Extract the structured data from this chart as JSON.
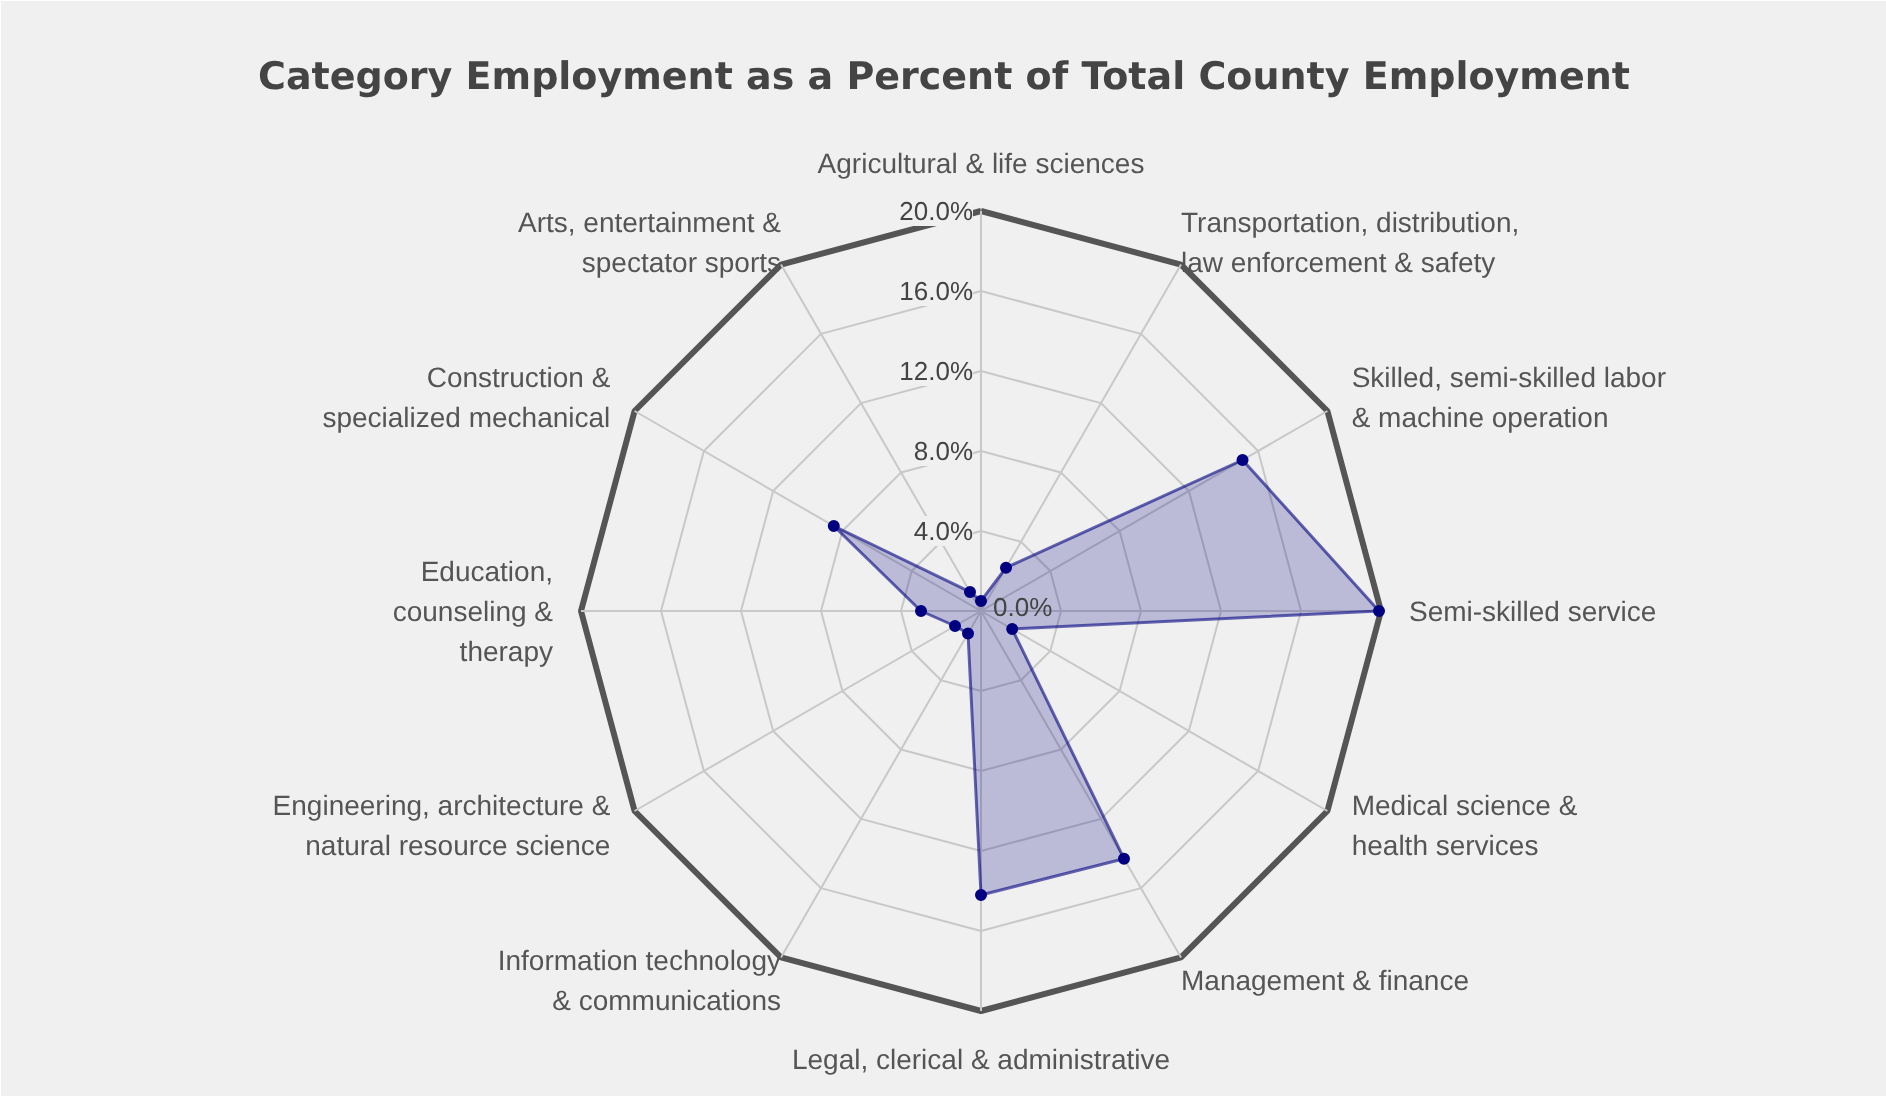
{
  "chart_data": {
    "type": "radar",
    "title": "Category Employment as a Percent of Total County Employment",
    "categories": [
      "Agricultural & life sciences",
      "Transportation, distribution, law enforcement & safety",
      "Skilled, semi-skilled labor & machine operation",
      "Semi-skilled service",
      "Medical science & health services",
      "Management & finance",
      "Legal, clerical & administrative",
      "Information technology & communications",
      "Engineering, architecture & natural resource science",
      "Education, counseling & therapy",
      "Construction & specialized mechanical",
      "Arts, entertainment & spectator sports"
    ],
    "series": [
      {
        "color": "#000080",
        "values": [
          0.5,
          2.5,
          15.1,
          19.9,
          1.8,
          14.3,
          14.2,
          1.3,
          1.5,
          3.0,
          8.5,
          1.1
        ]
      }
    ],
    "ylim": [
      0,
      20
    ],
    "yticks": [
      {
        "value": 0,
        "label": "0.0%"
      },
      {
        "value": 4,
        "label": "4.0%"
      },
      {
        "value": 8,
        "label": "8.0%"
      },
      {
        "value": 12,
        "label": "12.0%"
      },
      {
        "value": 16,
        "label": "16.0%"
      },
      {
        "value": 20,
        "label": "20.0%"
      }
    ],
    "grid": true,
    "marker": "circle"
  }
}
